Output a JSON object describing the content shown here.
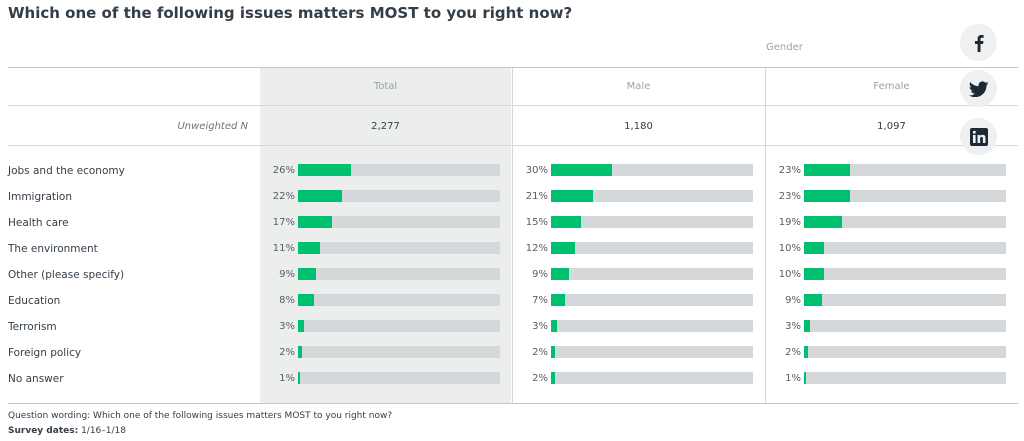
{
  "title": "Which one of the following issues matters MOST to you right now?",
  "group_label": "Gender",
  "unweighted_label": "Unweighted N",
  "footer": {
    "question_wording": "Question wording: Which one of the following issues matters MOST to you right now?",
    "survey_dates_label": "Survey dates:",
    "survey_dates_value": "1/16–1/18"
  },
  "social": [
    "facebook-icon",
    "twitter-icon",
    "linkedin-icon"
  ],
  "colors": {
    "bar_fill": "#00bf6f",
    "bar_track": "#d5d8da",
    "total_shade": "#eceeee"
  },
  "chart_data": {
    "type": "bar",
    "title": "Which one of the following issues matters MOST to you right now?",
    "categories": [
      "Jobs and the economy",
      "Immigration",
      "Health care",
      "The environment",
      "Other (please specify)",
      "Education",
      "Terrorism",
      "Foreign policy",
      "No answer"
    ],
    "series": [
      {
        "name": "Total",
        "n": "2,277",
        "values": [
          26,
          22,
          17,
          11,
          9,
          8,
          3,
          2,
          1
        ],
        "labels": [
          "26%",
          "22%",
          "17%",
          "11%",
          "9%",
          "8%",
          "3%",
          "2%",
          "1%"
        ]
      },
      {
        "name": "Male",
        "n": "1,180",
        "values": [
          30,
          21,
          15,
          12,
          9,
          7,
          3,
          2,
          2
        ],
        "labels": [
          "30%",
          "21%",
          "15%",
          "12%",
          "9%",
          "7%",
          "3%",
          "2%",
          "2%"
        ]
      },
      {
        "name": "Female",
        "n": "1,097",
        "values": [
          23,
          23,
          19,
          10,
          10,
          9,
          3,
          2,
          1
        ],
        "labels": [
          "23%",
          "23%",
          "19%",
          "10%",
          "10%",
          "9%",
          "3%",
          "2%",
          "1%"
        ]
      }
    ],
    "xlim": [
      0,
      100
    ],
    "grid": false,
    "legend": "none"
  }
}
